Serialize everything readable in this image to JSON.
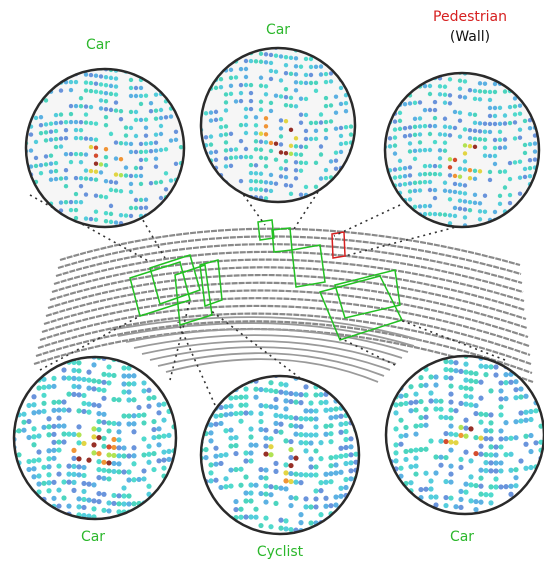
{
  "callouts": [
    {
      "label": "Car"
    },
    {
      "label": "Car"
    },
    {
      "label": "Pedestrian",
      "note": "(Wall)"
    },
    {
      "label": "Car"
    },
    {
      "label": "Cyclist"
    },
    {
      "label": "Car"
    }
  ]
}
